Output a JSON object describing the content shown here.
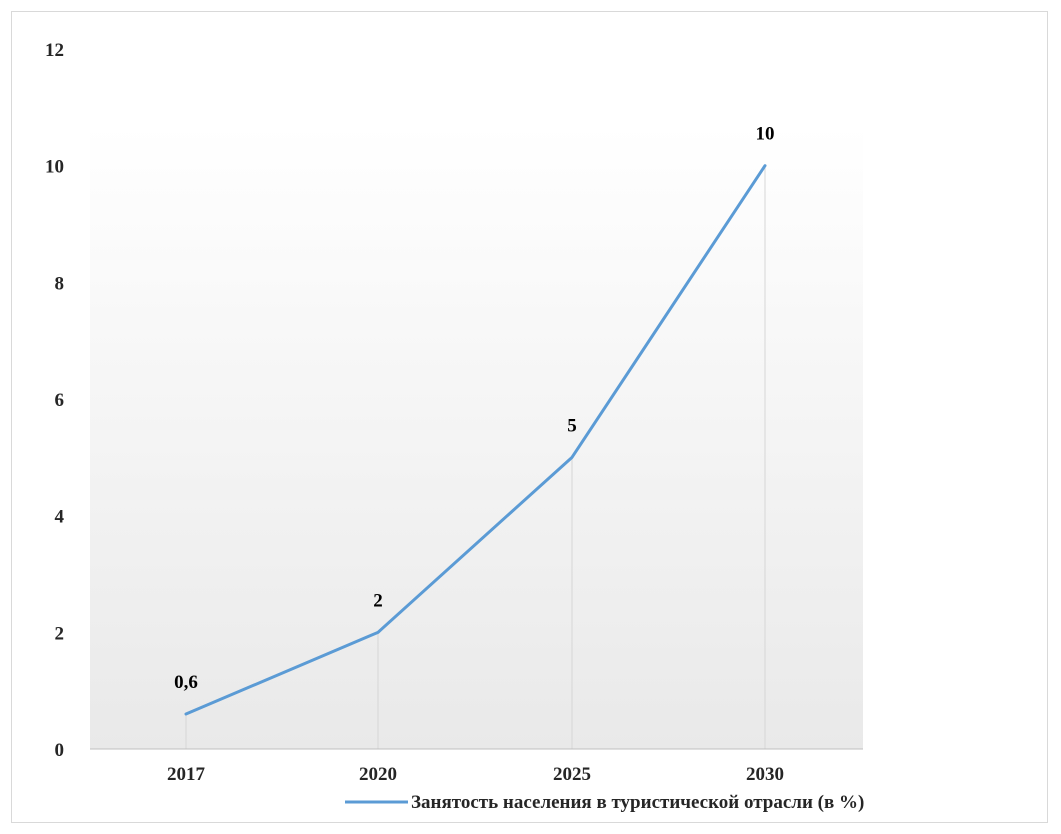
{
  "chart_data": {
    "type": "line",
    "categories": [
      "2017",
      "2020",
      "2025",
      "2030"
    ],
    "series": [
      {
        "name": "Занятость населения в туристической отрасли (в %)",
        "values": [
          0.6,
          2,
          5,
          10
        ],
        "data_labels": [
          "0,6",
          "2",
          "5",
          "10"
        ],
        "color": "#5b9bd5"
      }
    ],
    "ylim": [
      0,
      12
    ],
    "yticks": [
      0,
      2,
      4,
      6,
      8,
      10,
      12
    ],
    "ytick_labels": [
      "0",
      "2",
      "4",
      "6",
      "8",
      "10",
      "12"
    ],
    "title": "",
    "xlabel": "",
    "ylabel": "",
    "grid": "vertical drop lines",
    "legend_position": "bottom",
    "plot_background": "light gray gradient"
  }
}
